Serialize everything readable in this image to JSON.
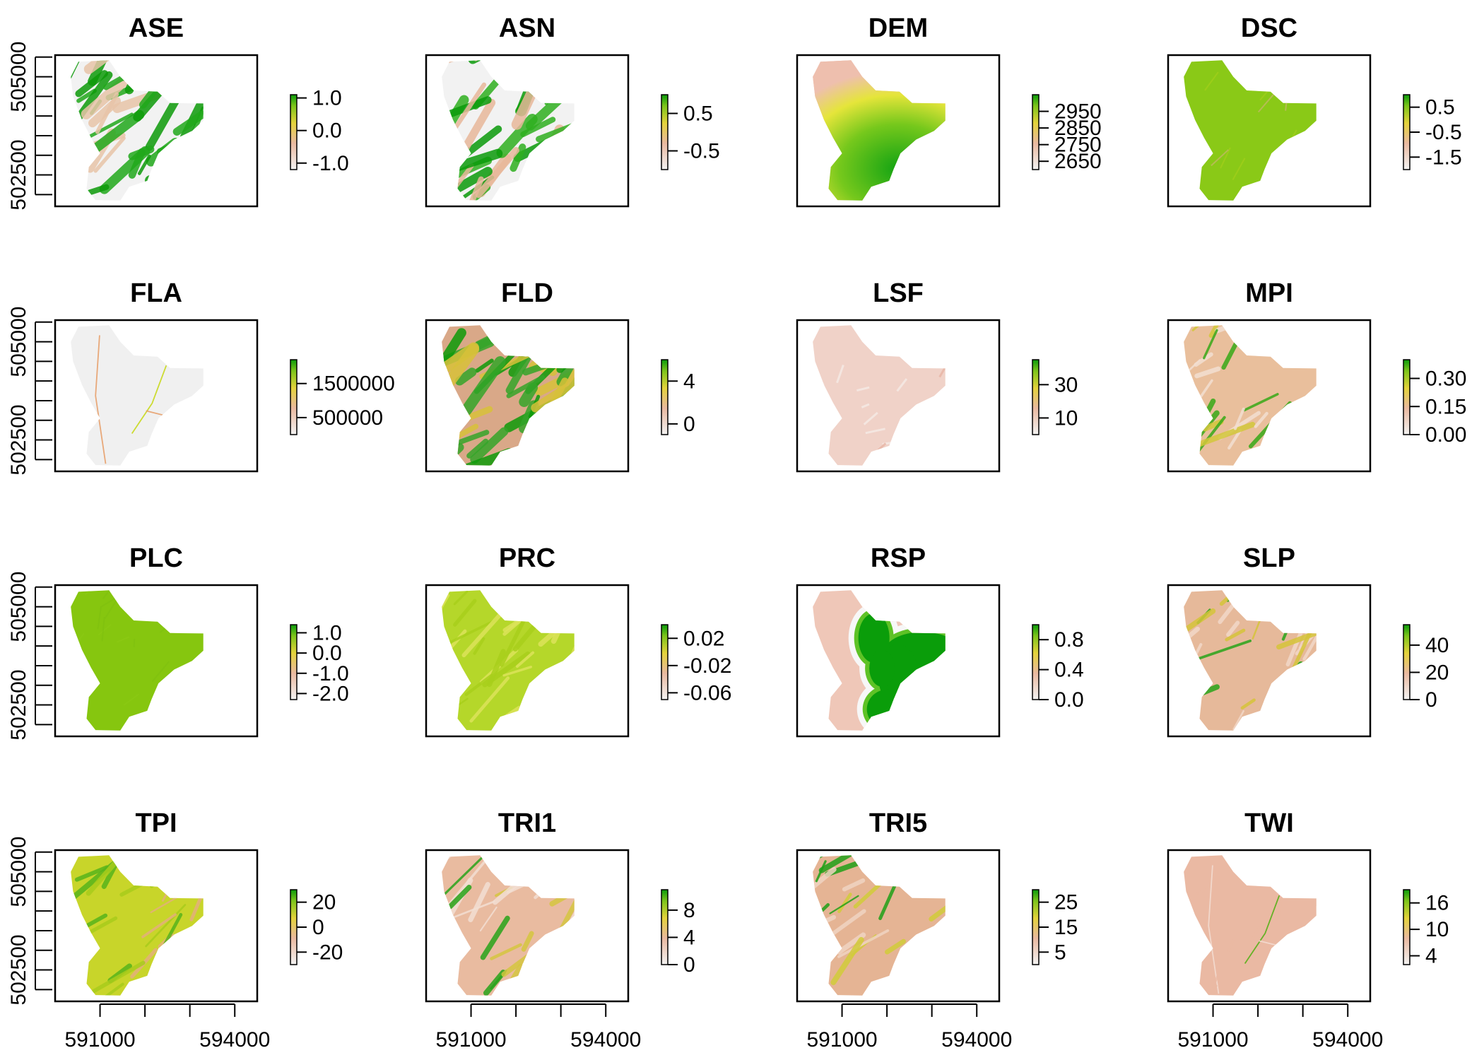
{
  "chart_data": {
    "type": "heatmap",
    "layout": {
      "rows": 4,
      "cols": 4
    },
    "x_axis": {
      "ticks": [
        591000,
        592000,
        593000,
        594000,
        595000
      ],
      "tick_labels": [
        "591000",
        "594000"
      ],
      "label_positions": [
        591000,
        594000
      ]
    },
    "y_axis": {
      "ticks": [
        502000,
        502500,
        503000,
        503500,
        504000,
        504500,
        505000,
        505500
      ],
      "tick_labels": [
        "502500",
        "505000"
      ],
      "label_positions": [
        502500,
        505000
      ]
    },
    "extent": {
      "xlim": [
        590000,
        594500
      ],
      "ylim": [
        501700,
        505550
      ]
    },
    "panels": [
      {
        "title": "ASE",
        "legend_labels": [
          "1.0",
          "0.0",
          "-1.0"
        ],
        "legend_range": [
          -1.2,
          1.1
        ],
        "style": "streaky_green",
        "colors": [
          "#f2f2f2",
          "#e8c5a8",
          "#22a81c",
          "#0d9a0a"
        ]
      },
      {
        "title": "ASN",
        "legend_labels": [
          "0.5",
          "-0.5"
        ],
        "legend_range": [
          -1.0,
          1.0
        ],
        "style": "streaky_green",
        "colors": [
          "#f2f2f2",
          "#e8b89a",
          "#30b020",
          "#0b9b0b"
        ]
      },
      {
        "title": "DEM",
        "legend_labels": [
          "2950",
          "2850",
          "2750",
          "2650"
        ],
        "legend_range": [
          2600,
          3050
        ],
        "style": "dem",
        "colors": [
          "#eebfae",
          "#e5e53a",
          "#76c81c",
          "#13a313"
        ]
      },
      {
        "title": "DSC",
        "legend_labels": [
          "0.5",
          "-0.5",
          "-1.5"
        ],
        "legend_range": [
          -2.0,
          1.0
        ],
        "style": "uniform",
        "colors": [
          "#8ac917",
          "#a9d11b",
          "#d3b47c"
        ]
      },
      {
        "title": "FLA",
        "legend_labels": [
          "1500000",
          "500000"
        ],
        "legend_range": [
          0,
          2200000
        ],
        "style": "flowlines",
        "colors": [
          "#f0f0f0",
          "#e7a06c",
          "#c8d81c"
        ]
      },
      {
        "title": "FLD",
        "legend_labels": [
          "4",
          "0"
        ],
        "legend_range": [
          -1,
          6
        ],
        "style": "streaky_green",
        "colors": [
          "#d9a888",
          "#d8c13a",
          "#34a52a",
          "#0d9a0a"
        ]
      },
      {
        "title": "LSF",
        "legend_labels": [
          "30",
          "10"
        ],
        "legend_range": [
          0,
          45
        ],
        "style": "pale",
        "colors": [
          "#f0d2c8",
          "#f6ebe6",
          "#e8b4a4"
        ]
      },
      {
        "title": "MPI",
        "legend_labels": [
          "0.30",
          "0.15",
          "0.00"
        ],
        "legend_range": [
          0,
          0.4
        ],
        "style": "pale_green_edges",
        "colors": [
          "#e9bf9c",
          "#f3dfd2",
          "#d3c73b",
          "#38a818"
        ]
      },
      {
        "title": "PLC",
        "legend_labels": [
          "1.0",
          "0.0",
          "-1.0",
          "-2.0"
        ],
        "legend_range": [
          -2.3,
          1.4
        ],
        "style": "uniform",
        "colors": [
          "#86c60f",
          "#8dca14",
          "#7fc010"
        ]
      },
      {
        "title": "PRC",
        "legend_labels": [
          "0.02",
          "-0.02",
          "-0.06"
        ],
        "legend_range": [
          -0.07,
          0.04
        ],
        "style": "uniform_streak",
        "colors": [
          "#b5d72a",
          "#a8cf1c",
          "#dce35a"
        ]
      },
      {
        "title": "RSP",
        "legend_labels": [
          "0.8",
          "0.4",
          "0.0"
        ],
        "legend_range": [
          0,
          1.0
        ],
        "style": "rsp",
        "colors": [
          "#efc7b8",
          "#f7f7f7",
          "#5ec226",
          "#0a9d0a"
        ]
      },
      {
        "title": "SLP",
        "legend_labels": [
          "40",
          "20",
          "0"
        ],
        "legend_range": [
          0,
          55
        ],
        "style": "pale_green_edges",
        "colors": [
          "#e6b99a",
          "#f1d8c8",
          "#d5c43a",
          "#28a41a"
        ]
      },
      {
        "title": "TPI",
        "legend_labels": [
          "20",
          "0",
          "-20"
        ],
        "legend_range": [
          -30,
          30
        ],
        "style": "tpi",
        "colors": [
          "#c8d52a",
          "#a9cc1c",
          "#e3b07c",
          "#58b41c"
        ]
      },
      {
        "title": "TRI1",
        "legend_labels": [
          "8",
          "4",
          "0"
        ],
        "legend_range": [
          0,
          11
        ],
        "style": "pale_green_edges",
        "colors": [
          "#e9bba0",
          "#f3ded3",
          "#d5c640",
          "#28a41a"
        ]
      },
      {
        "title": "TRI5",
        "legend_labels": [
          "25",
          "15",
          "5"
        ],
        "legend_range": [
          0,
          30
        ],
        "style": "pale_green_edges",
        "colors": [
          "#e5b494",
          "#f0d4c2",
          "#d2cc3a",
          "#20a018"
        ]
      },
      {
        "title": "TWI",
        "legend_labels": [
          "16",
          "10",
          "4"
        ],
        "legend_range": [
          2,
          19
        ],
        "style": "pale_flowlines",
        "colors": [
          "#eab9a3",
          "#f3dcd0",
          "#58b018"
        ]
      }
    ]
  }
}
